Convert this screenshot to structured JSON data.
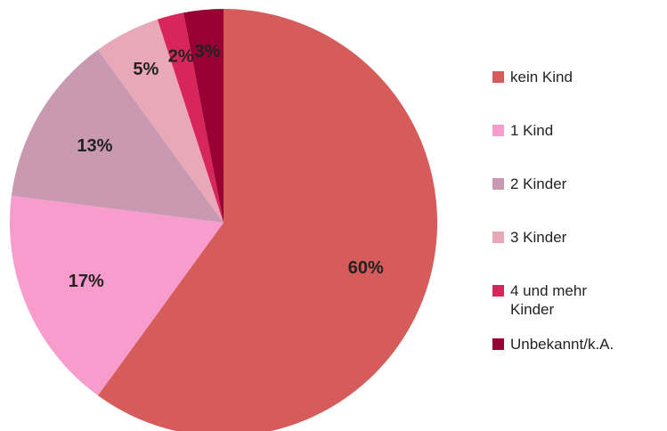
{
  "chart_data": {
    "type": "pie",
    "categories": [
      "kein Kind",
      "1 Kind",
      "2 Kinder",
      "3 Kinder",
      "4 und mehr Kinder",
      "Unbekannt/k.A."
    ],
    "values": [
      60,
      17,
      13,
      5,
      2,
      3
    ],
    "value_labels": [
      "60%",
      "17%",
      "13%",
      "5%",
      "2%",
      "3%"
    ],
    "colors": [
      "#d65b5b",
      "#f79ccc",
      "#c999b2",
      "#e8a8b8",
      "#d9265a",
      "#990033"
    ],
    "legend": "right"
  }
}
